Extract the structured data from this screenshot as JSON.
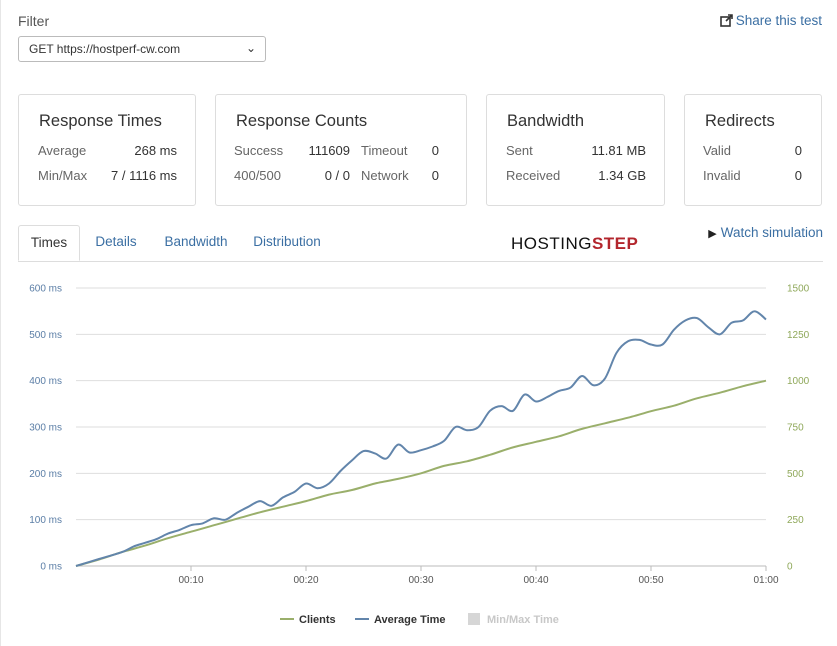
{
  "filter": {
    "label": "Filter",
    "selected": "GET https://hostperf-cw.com"
  },
  "share": {
    "label": "Share this test",
    "icon": "share-icon"
  },
  "cards": {
    "response_times": {
      "title": "Response Times",
      "rows": [
        {
          "label": "Average",
          "value": "268 ms"
        },
        {
          "label": "Min/Max",
          "value": "7 / 1116 ms"
        }
      ]
    },
    "response_counts": {
      "title": "Response Counts",
      "rows": [
        {
          "label": "Success",
          "value": "111609",
          "label2": "Timeout",
          "value2": "0"
        },
        {
          "label": "400/500",
          "value": "0 / 0",
          "label2": "Network",
          "value2": "0"
        }
      ]
    },
    "bandwidth": {
      "title": "Bandwidth",
      "rows": [
        {
          "label": "Sent",
          "value": "11.81 MB"
        },
        {
          "label": "Received",
          "value": "1.34 GB"
        }
      ]
    },
    "redirects": {
      "title": "Redirects",
      "rows": [
        {
          "label": "Valid",
          "value": "0"
        },
        {
          "label": "Invalid",
          "value": "0"
        }
      ]
    }
  },
  "tabs": [
    {
      "label": "Times",
      "active": true
    },
    {
      "label": "Details",
      "active": false
    },
    {
      "label": "Bandwidth",
      "active": false
    },
    {
      "label": "Distribution",
      "active": false
    }
  ],
  "logo": {
    "main": "HOSTING",
    "accent": "STEP"
  },
  "watch_simulation": {
    "label": "Watch simulation",
    "icon": "play-icon"
  },
  "colors": {
    "accent_link": "#3b6fa3",
    "clients_series": "#9aaf6b",
    "average_series": "#6285ab",
    "minmax_series": "#d6d6d6",
    "left_axis": "#5b7ea6",
    "right_axis": "#8fa85a"
  },
  "chart_data": {
    "type": "line",
    "x_ticks": [
      "00:10",
      "00:20",
      "00:30",
      "00:40",
      "00:50",
      "01:00"
    ],
    "x_tick_seconds": [
      10,
      20,
      30,
      40,
      50,
      60
    ],
    "x_range_seconds": [
      0,
      60
    ],
    "y_left": {
      "ticks": [
        "0 ms",
        "100 ms",
        "200 ms",
        "300 ms",
        "400 ms",
        "500 ms",
        "600 ms"
      ],
      "range": [
        0,
        600
      ],
      "unit": "ms"
    },
    "y_right": {
      "ticks": [
        "0",
        "250",
        "500",
        "750",
        "1000",
        "1250",
        "1500"
      ],
      "range": [
        0,
        1500
      ]
    },
    "grid": true,
    "legend_position": "bottom",
    "series": [
      {
        "name": "Clients",
        "axis": "right",
        "x": [
          0,
          2,
          4,
          6,
          8,
          10,
          12,
          14,
          16,
          18,
          20,
          22,
          24,
          26,
          28,
          30,
          32,
          34,
          36,
          38,
          40,
          42,
          44,
          46,
          48,
          50,
          52,
          54,
          56,
          58,
          60
        ],
        "y": [
          0,
          35,
          75,
          110,
          150,
          185,
          220,
          255,
          290,
          320,
          350,
          385,
          410,
          445,
          470,
          500,
          540,
          565,
          600,
          640,
          670,
          700,
          740,
          770,
          800,
          835,
          865,
          905,
          935,
          970,
          1000
        ]
      },
      {
        "name": "Average Time",
        "axis": "left",
        "x": [
          0,
          2,
          4,
          5,
          6,
          7,
          8,
          9,
          10,
          11,
          12,
          13,
          14,
          15,
          16,
          17,
          18,
          19,
          20,
          21,
          22,
          23,
          24,
          25,
          26,
          27,
          28,
          29,
          30,
          31,
          32,
          33,
          34,
          35,
          36,
          37,
          38,
          39,
          40,
          41,
          42,
          43,
          44,
          45,
          46,
          47,
          48,
          49,
          50,
          51,
          52,
          53,
          54,
          55,
          56,
          57,
          58,
          59,
          60
        ],
        "y": [
          0,
          15,
          30,
          42,
          50,
          58,
          70,
          78,
          88,
          92,
          103,
          100,
          115,
          128,
          140,
          130,
          148,
          160,
          178,
          168,
          178,
          205,
          228,
          248,
          243,
          232,
          262,
          245,
          250,
          258,
          270,
          300,
          293,
          300,
          335,
          345,
          335,
          370,
          355,
          365,
          378,
          385,
          410,
          390,
          405,
          460,
          485,
          488,
          478,
          478,
          510,
          530,
          535,
          515,
          500,
          525,
          530,
          550,
          532
        ]
      }
    ],
    "legend": [
      {
        "name": "Clients"
      },
      {
        "name": "Average Time"
      },
      {
        "name": "Min/Max Time"
      }
    ]
  }
}
